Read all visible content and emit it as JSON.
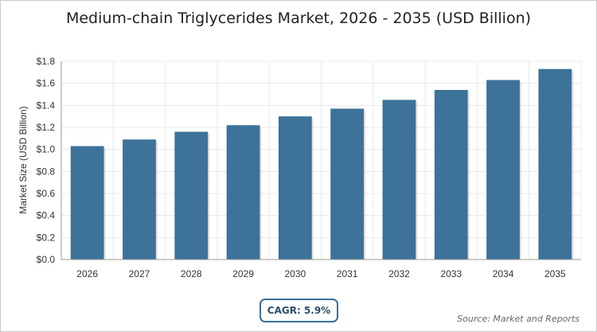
{
  "title": "Medium-chain Triglycerides Market, 2026 - 2035 (USD Billion)",
  "cagr_label": "CAGR: 5.9%",
  "source": "Source: Market and Reports",
  "colors": {
    "bar": "#3d7299",
    "grid": "#e8e8e8",
    "axis": "#999999"
  },
  "chart_data": {
    "type": "bar",
    "title": "Medium-chain Triglycerides Market, 2026 - 2035 (USD Billion)",
    "xlabel": "",
    "ylabel": "Market Size (USD Billion)",
    "categories": [
      "2026",
      "2027",
      "2028",
      "2029",
      "2030",
      "2031",
      "2032",
      "2033",
      "2034",
      "2035"
    ],
    "values": [
      1.03,
      1.09,
      1.16,
      1.22,
      1.3,
      1.37,
      1.45,
      1.54,
      1.63,
      1.73
    ],
    "ylim": [
      0,
      1.8
    ],
    "yticks": [
      "$0.0",
      "$0.2",
      "$0.4",
      "$0.6",
      "$0.8",
      "$1.0",
      "$1.2",
      "$1.4",
      "$1.6",
      "$1.8"
    ],
    "grid": true,
    "legend": "none"
  }
}
